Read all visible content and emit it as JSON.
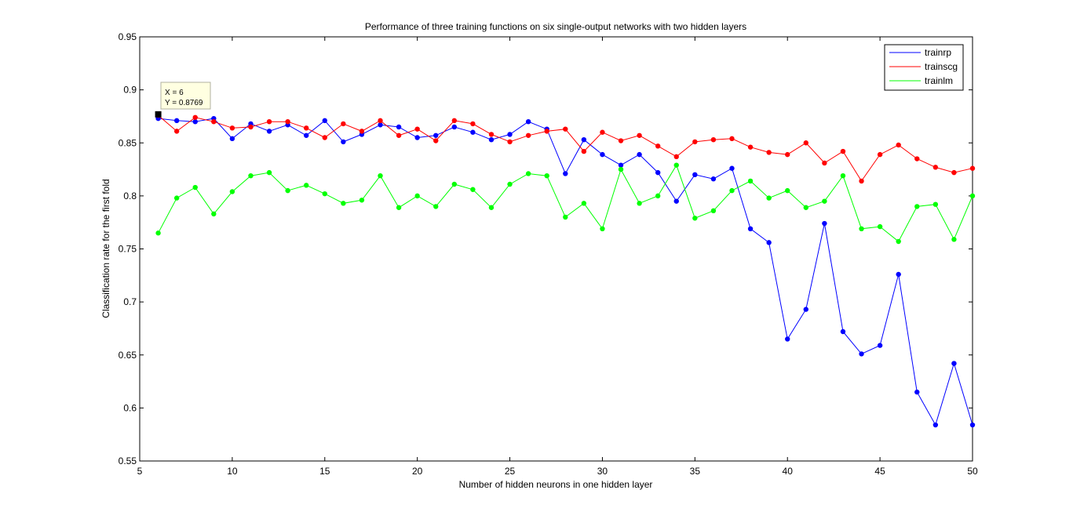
{
  "chart_data": {
    "type": "line",
    "title": "Performance of three training functions on six single-output networks with two hidden layers",
    "xlabel": "Number of hidden neurons in one hidden layer",
    "ylabel": "Classification rate for the first fold",
    "xlim": [
      5,
      50
    ],
    "ylim": [
      0.55,
      0.95
    ],
    "xticks": [
      5,
      10,
      15,
      20,
      25,
      30,
      35,
      40,
      45,
      50
    ],
    "yticks": [
      0.55,
      0.6,
      0.65,
      0.7,
      0.75,
      0.8,
      0.85,
      0.9,
      0.95
    ],
    "ytick_labels": [
      "0.55",
      "0.6",
      "0.65",
      "0.7",
      "0.75",
      "0.8",
      "0.85",
      "0.9",
      "0.95"
    ],
    "grid": false,
    "legend": "top-right",
    "x": [
      6,
      7,
      8,
      9,
      10,
      11,
      12,
      13,
      14,
      15,
      16,
      17,
      18,
      19,
      20,
      21,
      22,
      23,
      24,
      25,
      26,
      27,
      28,
      29,
      30,
      31,
      32,
      33,
      34,
      35,
      36,
      37,
      38,
      39,
      40,
      41,
      42,
      43,
      44,
      45,
      46,
      47,
      48,
      49,
      50
    ],
    "series": [
      {
        "name": "trainrp",
        "color": "#0000ff",
        "values": [
          0.873,
          0.871,
          0.87,
          0.873,
          0.854,
          0.868,
          0.861,
          0.867,
          0.857,
          0.871,
          0.851,
          0.858,
          0.867,
          0.865,
          0.855,
          0.857,
          0.865,
          0.86,
          0.853,
          0.858,
          0.87,
          0.863,
          0.821,
          0.853,
          0.839,
          0.829,
          0.839,
          0.822,
          0.795,
          0.82,
          0.816,
          0.826,
          0.769,
          0.756,
          0.665,
          0.693,
          0.774,
          0.672,
          0.651,
          0.659,
          0.726,
          0.615,
          0.584,
          0.642,
          0.584
        ]
      },
      {
        "name": "trainscg",
        "color": "#ff0000",
        "values": [
          0.876,
          0.861,
          0.874,
          0.87,
          0.864,
          0.865,
          0.87,
          0.87,
          0.864,
          0.855,
          0.868,
          0.861,
          0.871,
          0.857,
          0.863,
          0.852,
          0.871,
          0.868,
          0.858,
          0.851,
          0.857,
          0.861,
          0.863,
          0.842,
          0.86,
          0.852,
          0.857,
          0.847,
          0.837,
          0.851,
          0.853,
          0.854,
          0.846,
          0.841,
          0.839,
          0.85,
          0.831,
          0.842,
          0.814,
          0.839,
          0.848,
          0.835,
          0.827,
          0.822,
          0.826
        ]
      },
      {
        "name": "trainlm",
        "color": "#00ff00",
        "values": [
          0.765,
          0.798,
          0.808,
          0.783,
          0.804,
          0.819,
          0.822,
          0.805,
          0.81,
          0.802,
          0.793,
          0.796,
          0.819,
          0.789,
          0.8,
          0.79,
          0.811,
          0.806,
          0.789,
          0.811,
          0.821,
          0.819,
          0.78,
          0.793,
          0.769,
          0.825,
          0.793,
          0.8,
          0.829,
          0.779,
          0.786,
          0.805,
          0.814,
          0.798,
          0.805,
          0.789,
          0.795,
          0.819,
          0.769,
          0.771,
          0.757,
          0.79,
          0.792,
          0.759,
          0.8
        ]
      }
    ],
    "datatip": {
      "x": 6,
      "y": 0.8769,
      "x_text": "X = 6",
      "y_text": "Y = 0.8769"
    }
  }
}
